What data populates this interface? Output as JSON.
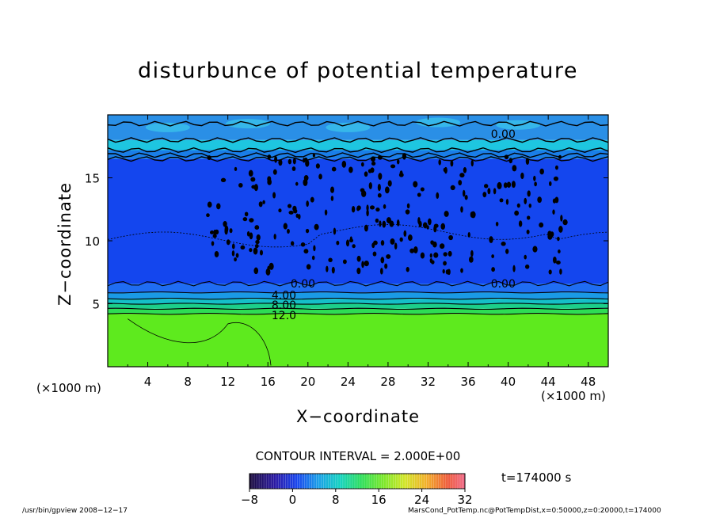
{
  "chart_data": {
    "type": "heatmap",
    "title": "disturbunce of potential temperature",
    "xlabel": "X−coordinate",
    "ylabel": "Z−coordinate",
    "x_unit_left": "(×1000 m)",
    "x_unit_right": "(×1000 m)",
    "xlim": [
      0,
      50
    ],
    "ylim": [
      0,
      20
    ],
    "xticks": [
      4,
      8,
      12,
      16,
      20,
      24,
      28,
      32,
      36,
      40,
      44,
      48
    ],
    "yticks": [
      5,
      10,
      15
    ],
    "contour_labels": [
      {
        "x": 39.5,
        "z": 18.5,
        "text": "0.00"
      },
      {
        "x": 19.5,
        "z": 6.6,
        "text": "0.00"
      },
      {
        "x": 39.5,
        "z": 6.6,
        "text": "0.00"
      },
      {
        "x": 17.6,
        "z": 5.7,
        "text": "4.00"
      },
      {
        "x": 17.6,
        "z": 4.9,
        "text": "8.00"
      },
      {
        "x": 17.6,
        "z": 4.1,
        "text": "12.0"
      }
    ],
    "contour_interval": "CONTOUR INTERVAL = 2.000E+00",
    "time": "t=174000 s",
    "colorbar": {
      "range": [
        -8,
        32
      ],
      "ticks": [
        "−8",
        "0",
        "8",
        "16",
        "24",
        "32"
      ]
    },
    "bands": [
      {
        "z": [
          0,
          4.2
        ],
        "value": 14,
        "color": "#5eea1e"
      },
      {
        "z": [
          4.2,
          4.6
        ],
        "value": 11,
        "color": "#2edc55"
      },
      {
        "z": [
          4.6,
          5.0
        ],
        "value": 8,
        "color": "#1ccf8a"
      },
      {
        "z": [
          5.0,
          5.4
        ],
        "value": 6,
        "color": "#15bfc8"
      },
      {
        "z": [
          5.4,
          5.9
        ],
        "value": 4,
        "color": "#1a9ae6"
      },
      {
        "z": [
          5.9,
          6.6
        ],
        "value": 2,
        "color": "#1f6df2"
      },
      {
        "z": [
          6.6,
          16.5
        ],
        "value": -1,
        "color": "#1446ee"
      },
      {
        "z": [
          16.5,
          17.2
        ],
        "value": 1,
        "color": "#1a7ee8"
      },
      {
        "z": [
          17.2,
          18.0
        ],
        "value": 3,
        "color": "#1ec6e0"
      },
      {
        "z": [
          18.0,
          20.0
        ],
        "value": 1,
        "color": "#2a8fe6"
      }
    ]
  },
  "footer": {
    "left": "/usr/bin/gpview   2008−12−17",
    "right": "MarsCond_PotTemp.nc@PotTempDist,x=0:50000,z=0:20000,t=174000"
  },
  "colors": {
    "background": "#ffffff",
    "axis": "#000000"
  }
}
